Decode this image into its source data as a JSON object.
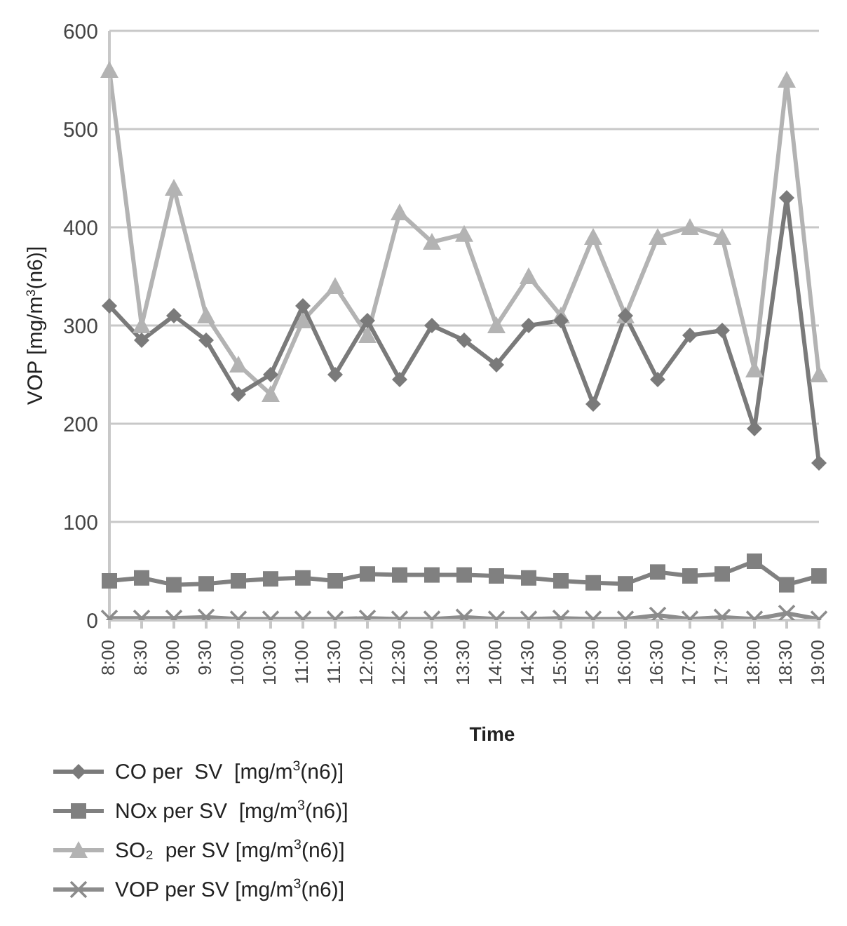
{
  "chart_data": {
    "type": "line",
    "xlabel": "Time",
    "ylabel": "VOP [mg/m$^{3}$(n6)]",
    "categories": [
      "8:00",
      "8:30",
      "9:00",
      "9:30",
      "10:00",
      "10:30",
      "11:00",
      "11:30",
      "12:00",
      "12:30",
      "13:00",
      "13:30",
      "14:00",
      "14:30",
      "15:00",
      "15:30",
      "16:00",
      "16:30",
      "17:00",
      "17:30",
      "18:00",
      "18:30",
      "19:00"
    ],
    "series": [
      {
        "name": "CO per  SV  [mg/m$^{3}$(n6)]",
        "color": "#7a7a7a",
        "marker": "diamond",
        "values": [
          320,
          285,
          310,
          285,
          230,
          250,
          320,
          250,
          305,
          245,
          300,
          285,
          260,
          300,
          305,
          220,
          310,
          245,
          290,
          295,
          195,
          430,
          160
        ]
      },
      {
        "name": "NOx per SV  [mg/m$^{3}$(n6)]",
        "color": "#808080",
        "marker": "square",
        "values": [
          40,
          43,
          36,
          37,
          40,
          42,
          43,
          40,
          47,
          46,
          46,
          46,
          45,
          43,
          40,
          38,
          37,
          49,
          45,
          47,
          60,
          36,
          45
        ]
      },
      {
        "name": "SO₂  per SV [mg/m$^{3}$(n6)]",
        "color": "#b3b3b3",
        "marker": "triangle",
        "values": [
          560,
          300,
          440,
          310,
          260,
          230,
          305,
          340,
          290,
          415,
          385,
          393,
          300,
          350,
          310,
          390,
          310,
          390,
          400,
          390,
          255,
          550,
          250
        ]
      },
      {
        "name": "VOP per SV [mg/m$^{3}$(n6)]",
        "color": "#8c8c8c",
        "marker": "cross",
        "values": [
          2,
          2,
          2,
          3,
          1,
          1,
          1,
          1,
          2,
          1,
          1,
          3,
          1,
          1,
          2,
          1,
          1,
          5,
          1,
          3,
          1,
          7,
          1
        ]
      }
    ],
    "ylim": [
      0,
      600
    ],
    "yticks": [
      0,
      100,
      200,
      300,
      400,
      500,
      600
    ],
    "grid": "y",
    "legend": "bottom left",
    "line_style": "solid"
  }
}
